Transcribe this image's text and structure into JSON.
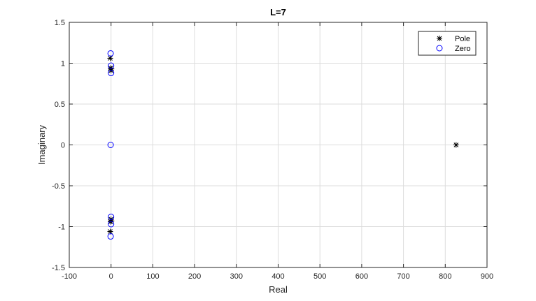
{
  "chart_data": {
    "type": "scatter",
    "title": "L=7",
    "xlabel": "Real",
    "ylabel": "Imaginary",
    "xlim": [
      -100,
      900
    ],
    "ylim": [
      -1.5,
      1.5
    ],
    "xticks": [
      -100,
      0,
      100,
      200,
      300,
      400,
      500,
      600,
      700,
      800,
      900
    ],
    "yticks": [
      -1.5,
      -1,
      -0.5,
      0,
      0.5,
      1,
      1.5
    ],
    "x_tick_labels": [
      "-100",
      "0",
      "100",
      "200",
      "300",
      "400",
      "500",
      "600",
      "700",
      "800",
      "900"
    ],
    "y_tick_labels": [
      "-1.5",
      "-1",
      "-0.5",
      "0",
      "0.5",
      "1",
      "1.5"
    ],
    "grid": true,
    "legend_position": "top-right",
    "series": [
      {
        "name": "Pole",
        "marker": "asterisk",
        "color": "#000000",
        "points": [
          {
            "x": -2,
            "y": 1.06
          },
          {
            "x": -1,
            "y": 0.94
          },
          {
            "x": 0,
            "y": 0.91
          },
          {
            "x": 1,
            "y": 0.93
          },
          {
            "x": -2,
            "y": -1.06
          },
          {
            "x": -1,
            "y": -0.94
          },
          {
            "x": 0,
            "y": -0.91
          },
          {
            "x": 1,
            "y": -0.93
          },
          {
            "x": 826,
            "y": 0
          }
        ]
      },
      {
        "name": "Zero",
        "marker": "circle",
        "color": "#0000ff",
        "points": [
          {
            "x": -1,
            "y": 1.12
          },
          {
            "x": 0,
            "y": 0.97
          },
          {
            "x": 0,
            "y": 0.88
          },
          {
            "x": -1,
            "y": 0
          },
          {
            "x": -1,
            "y": -1.12
          },
          {
            "x": 0,
            "y": -0.97
          },
          {
            "x": 0,
            "y": -0.88
          }
        ]
      }
    ]
  }
}
